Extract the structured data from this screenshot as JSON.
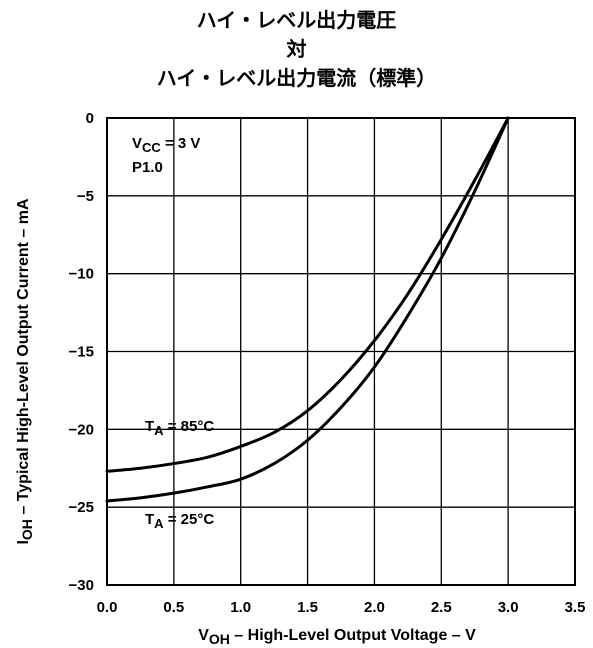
{
  "chart_data": {
    "type": "line",
    "title": [
      "ハイ・レベル出力電圧",
      "対",
      "ハイ・レベル出力電流（標準）"
    ],
    "xlabel": {
      "main": "V",
      "sub": "OH",
      "rest": " – High-Level Output Voltage – V"
    },
    "ylabel": {
      "main": "I",
      "sub": "OH",
      "rest": " – Typical High-Level Output Current – mA"
    },
    "xlim": [
      0.0,
      3.5
    ],
    "ylim": [
      -30,
      0
    ],
    "x_ticks": [
      "0.0",
      "0.5",
      "1.0",
      "1.5",
      "2.0",
      "2.5",
      "3.0",
      "3.5"
    ],
    "y_ticks": [
      "0",
      "−5",
      "−10",
      "−15",
      "−20",
      "−25",
      "−30"
    ],
    "grid": true,
    "conditions": [
      {
        "main": "V",
        "sub": "CC",
        "rest": " = 3 V"
      },
      {
        "main": "P1.0",
        "sub": "",
        "rest": ""
      }
    ],
    "series": [
      {
        "name": {
          "main": "T",
          "sub": "A",
          "rest": " = 85°C"
        },
        "x": [
          0.0,
          0.25,
          0.5,
          0.75,
          1.0,
          1.25,
          1.5,
          1.75,
          2.0,
          2.25,
          2.5,
          2.75,
          3.0
        ],
        "y": [
          -22.7,
          -22.5,
          -22.2,
          -21.8,
          -21.1,
          -20.2,
          -18.8,
          -16.8,
          -14.3,
          -11.3,
          -7.8,
          -4.0,
          0.0
        ]
      },
      {
        "name": {
          "main": "T",
          "sub": "A",
          "rest": " = 25°C"
        },
        "x": [
          0.0,
          0.25,
          0.5,
          0.75,
          1.0,
          1.25,
          1.5,
          1.75,
          2.0,
          2.25,
          2.5,
          2.75,
          3.0
        ],
        "y": [
          -24.6,
          -24.4,
          -24.1,
          -23.7,
          -23.2,
          -22.2,
          -20.7,
          -18.6,
          -16.0,
          -12.7,
          -9.0,
          -4.7,
          0.0
        ]
      }
    ]
  },
  "colors": {
    "line": "#000000",
    "grid": "#000000",
    "background": "#ffffff"
  }
}
